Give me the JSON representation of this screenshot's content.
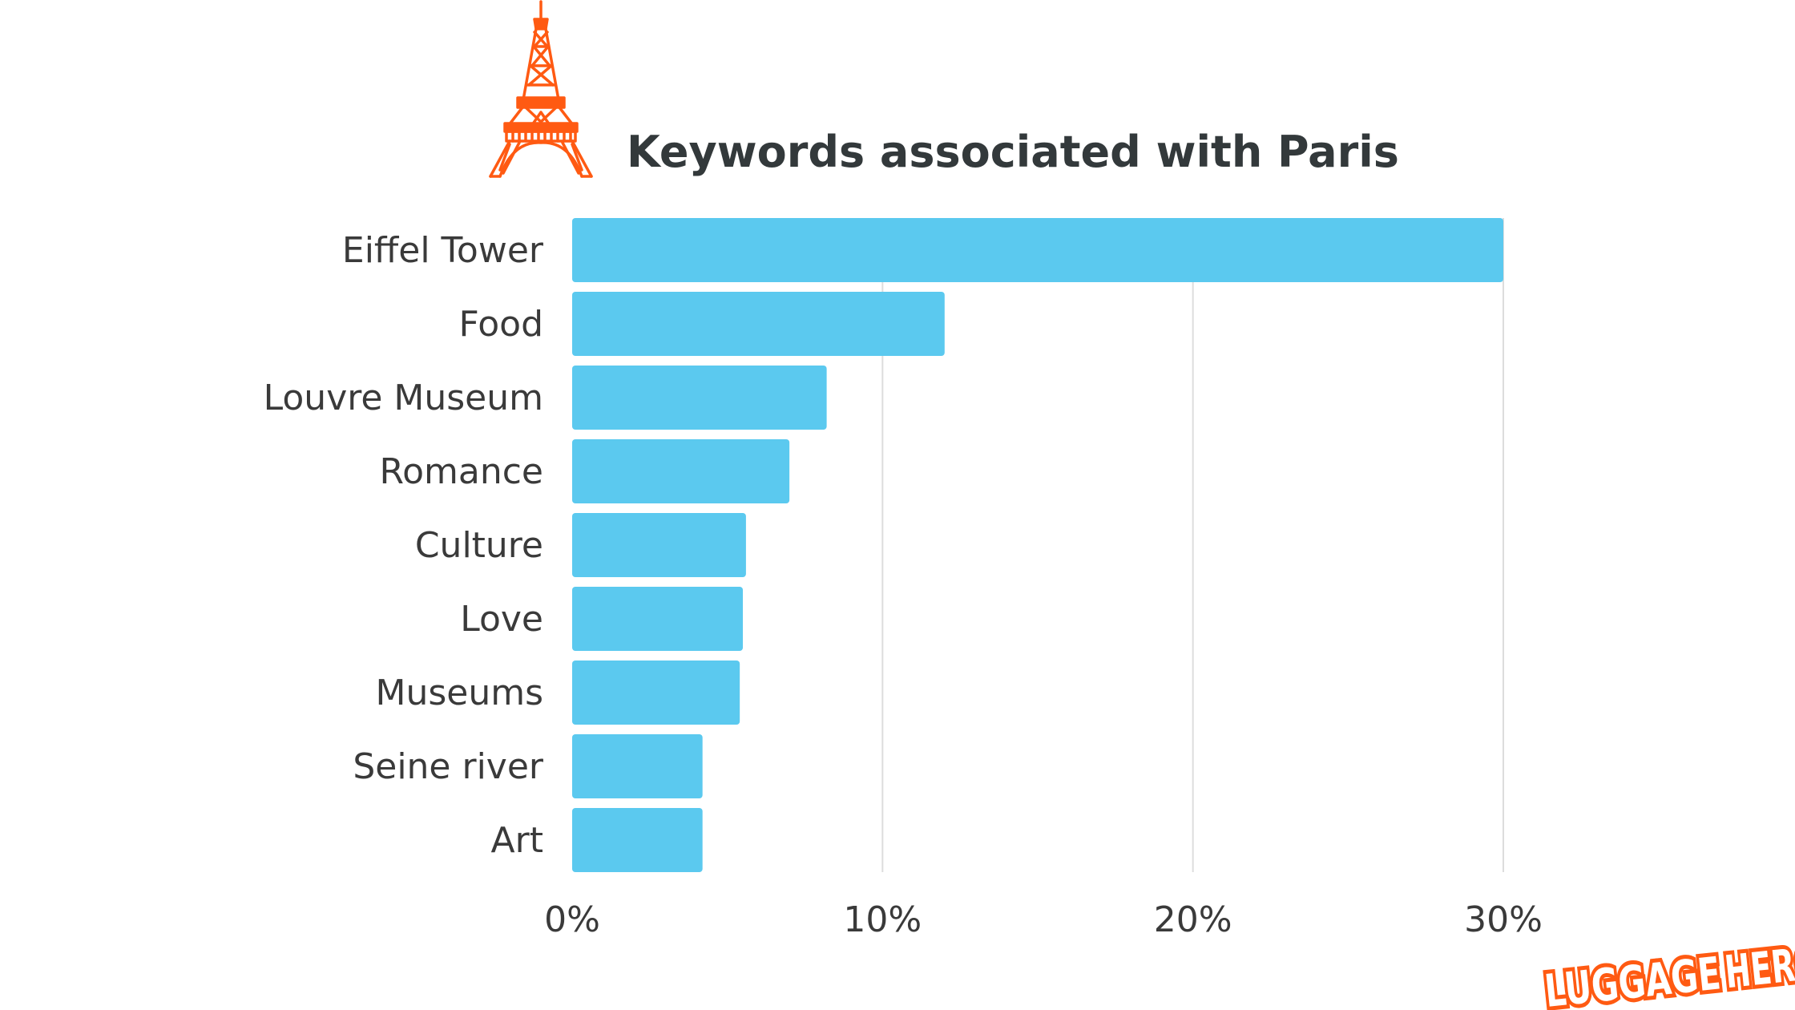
{
  "header": {
    "title": "Keywords associated with Paris",
    "icon": "eiffel-tower-icon",
    "icon_color": "#ff5a12"
  },
  "chart_data": {
    "type": "bar",
    "orientation": "horizontal",
    "title": "Keywords associated with Paris",
    "categories": [
      "Eiffel Tower",
      "Food",
      "Louvre Museum",
      "Romance",
      "Culture",
      "Love",
      "Museums",
      "Seine river",
      "Art"
    ],
    "values": [
      30,
      12,
      8.2,
      7,
      5.6,
      5.5,
      5.4,
      4.2,
      4.2
    ],
    "xlim": [
      0,
      30
    ],
    "ticks": [
      {
        "value": 0,
        "label": "0%"
      },
      {
        "value": 10,
        "label": "10%"
      },
      {
        "value": 20,
        "label": "20%"
      },
      {
        "value": 30,
        "label": "30%"
      }
    ],
    "grid": true,
    "legend": "none",
    "bar_color": "#5bc9ef",
    "grid_color": "#dddddd"
  },
  "brand": {
    "logo_text_1": "LUGGAGE",
    "logo_text_2": "HERO",
    "logo_icon": "suitcase-star-icon",
    "color": "#ff5a12"
  }
}
